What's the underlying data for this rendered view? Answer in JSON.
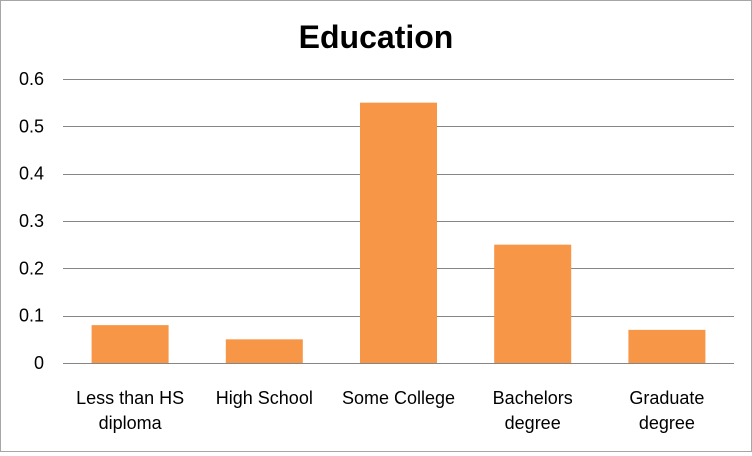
{
  "chart_data": {
    "type": "bar",
    "title": "Education",
    "categories": [
      [
        "Less than HS",
        "diploma"
      ],
      [
        "High School"
      ],
      [
        "Some College"
      ],
      [
        "Bachelors",
        "degree"
      ],
      [
        "Graduate",
        "degree"
      ]
    ],
    "values": [
      0.08,
      0.05,
      0.55,
      0.25,
      0.07
    ],
    "ylim": [
      0,
      0.6
    ],
    "yticks": [
      0,
      0.1,
      0.2,
      0.3,
      0.4,
      0.5,
      0.6
    ],
    "ytick_labels": [
      "0",
      "0.1",
      "0.2",
      "0.3",
      "0.4",
      "0.5",
      "0.6"
    ],
    "grid": true,
    "legend": "none",
    "colors": {
      "bar": "#f79646",
      "grid": "#868686",
      "axis": "#868686"
    }
  }
}
